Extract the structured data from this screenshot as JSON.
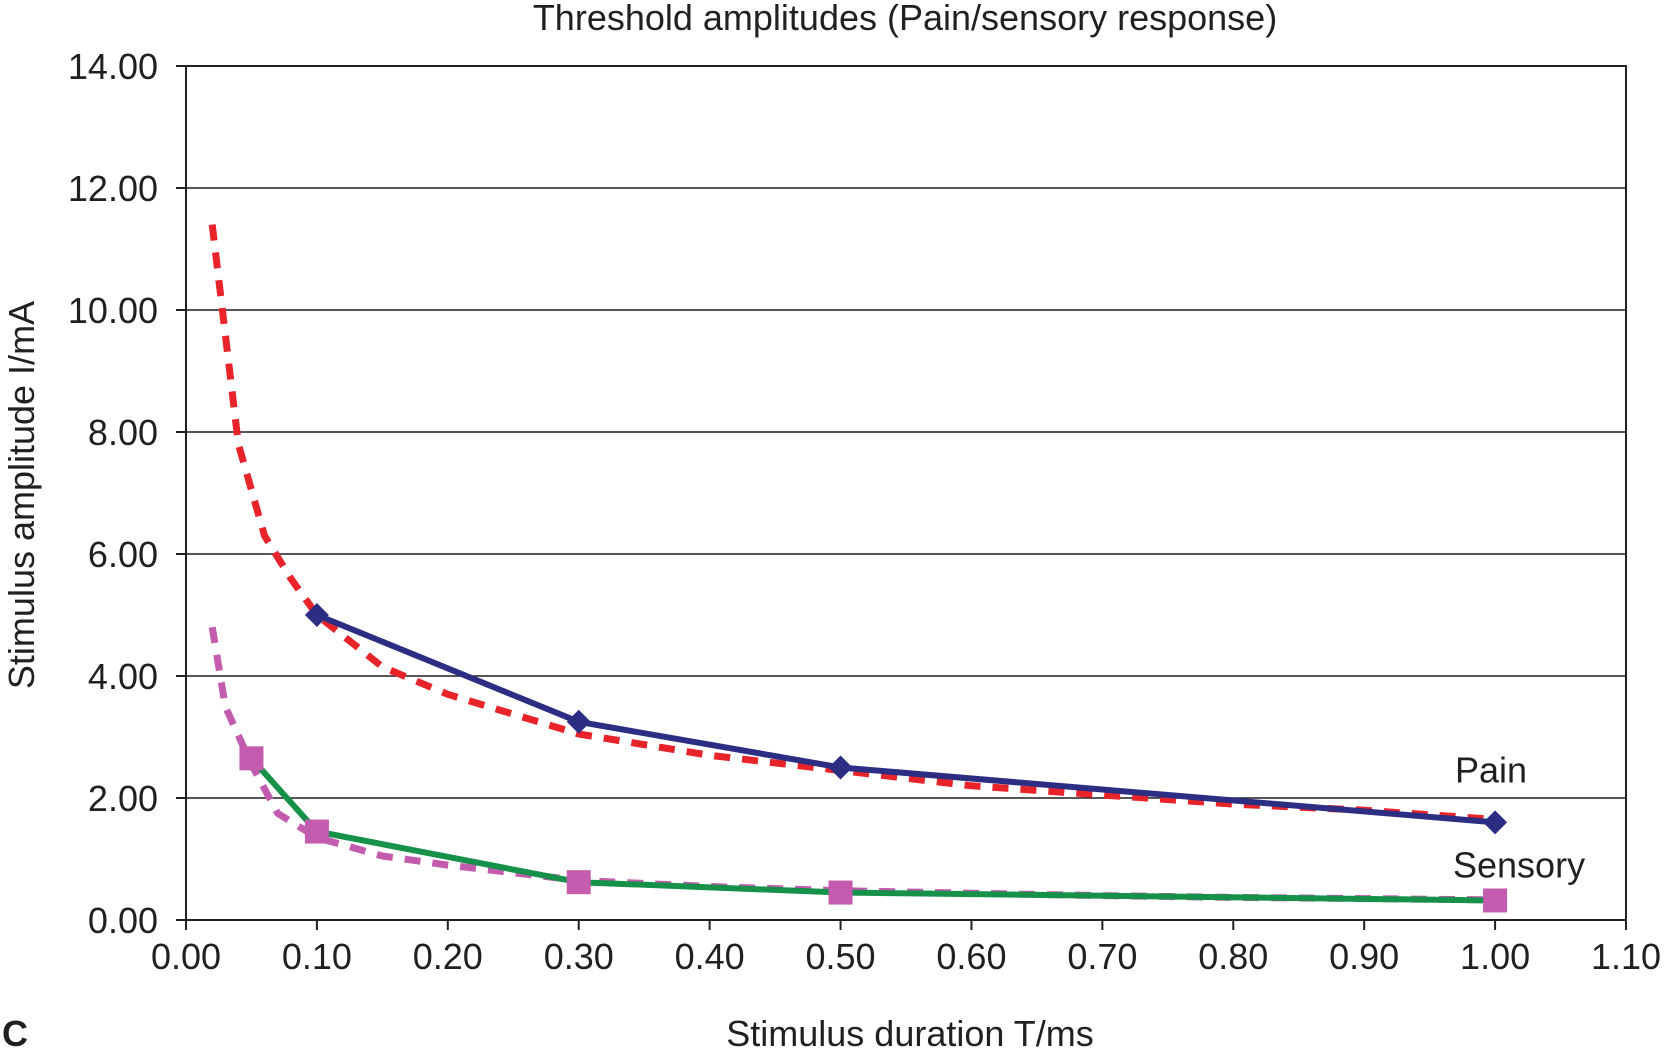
{
  "chart_data": {
    "type": "line",
    "title": "Threshold amplitudes (Pain/sensory response)",
    "xlabel": "Stimulus duration T/ms",
    "ylabel": "Stimulus amplitude I/mA",
    "panel_letter": "C",
    "xlim": [
      0,
      1.1
    ],
    "ylim": [
      0,
      14
    ],
    "x_ticks": [
      0.0,
      0.1,
      0.2,
      0.3,
      0.4,
      0.5,
      0.6,
      0.7,
      0.8,
      0.9,
      1.0,
      1.1
    ],
    "x_tick_labels": [
      "0.00",
      "0.10",
      "0.20",
      "0.30",
      "0.40",
      "0.50",
      "0.60",
      "0.70",
      "0.80",
      "0.90",
      "1.00",
      "1.10"
    ],
    "y_ticks": [
      0,
      2,
      4,
      6,
      8,
      10,
      12,
      14
    ],
    "y_tick_labels": [
      "0.00",
      "2.00",
      "4.00",
      "6.00",
      "8.00",
      "10.00",
      "12.00",
      "14.00"
    ],
    "grid": "horizontal",
    "series": [
      {
        "name": "Pain",
        "style": "solid",
        "color": "#2b2e83",
        "marker": "diamond",
        "x": [
          0.1,
          0.3,
          0.5,
          1.0
        ],
        "y": [
          5.0,
          3.25,
          2.5,
          1.6
        ]
      },
      {
        "style": "dashed",
        "color": "#e8232a",
        "marker": "none",
        "x": [
          0.02,
          0.04,
          0.06,
          0.08,
          0.1,
          0.15,
          0.2,
          0.3,
          0.4,
          0.5,
          0.6,
          0.7,
          0.8,
          0.9,
          1.0
        ],
        "y": [
          11.4,
          7.8,
          6.3,
          5.6,
          5.0,
          4.15,
          3.7,
          3.05,
          2.7,
          2.45,
          2.2,
          2.05,
          1.9,
          1.8,
          1.65
        ]
      },
      {
        "name": "Sensory",
        "style": "solid",
        "color": "#15914a",
        "marker": "square",
        "marker_color": "#c35bae",
        "x": [
          0.05,
          0.1,
          0.3,
          0.5,
          1.0
        ],
        "y": [
          2.65,
          1.45,
          0.62,
          0.45,
          0.32
        ]
      },
      {
        "style": "dashed",
        "color": "#c35bae",
        "marker": "none",
        "x": [
          0.02,
          0.03,
          0.05,
          0.07,
          0.1,
          0.15,
          0.2,
          0.3,
          0.4,
          0.5,
          0.6,
          0.7,
          0.8,
          0.9,
          1.0
        ],
        "y": [
          4.8,
          3.5,
          2.55,
          1.75,
          1.35,
          1.05,
          0.9,
          0.65,
          0.55,
          0.48,
          0.44,
          0.4,
          0.37,
          0.35,
          0.33
        ]
      }
    ]
  }
}
